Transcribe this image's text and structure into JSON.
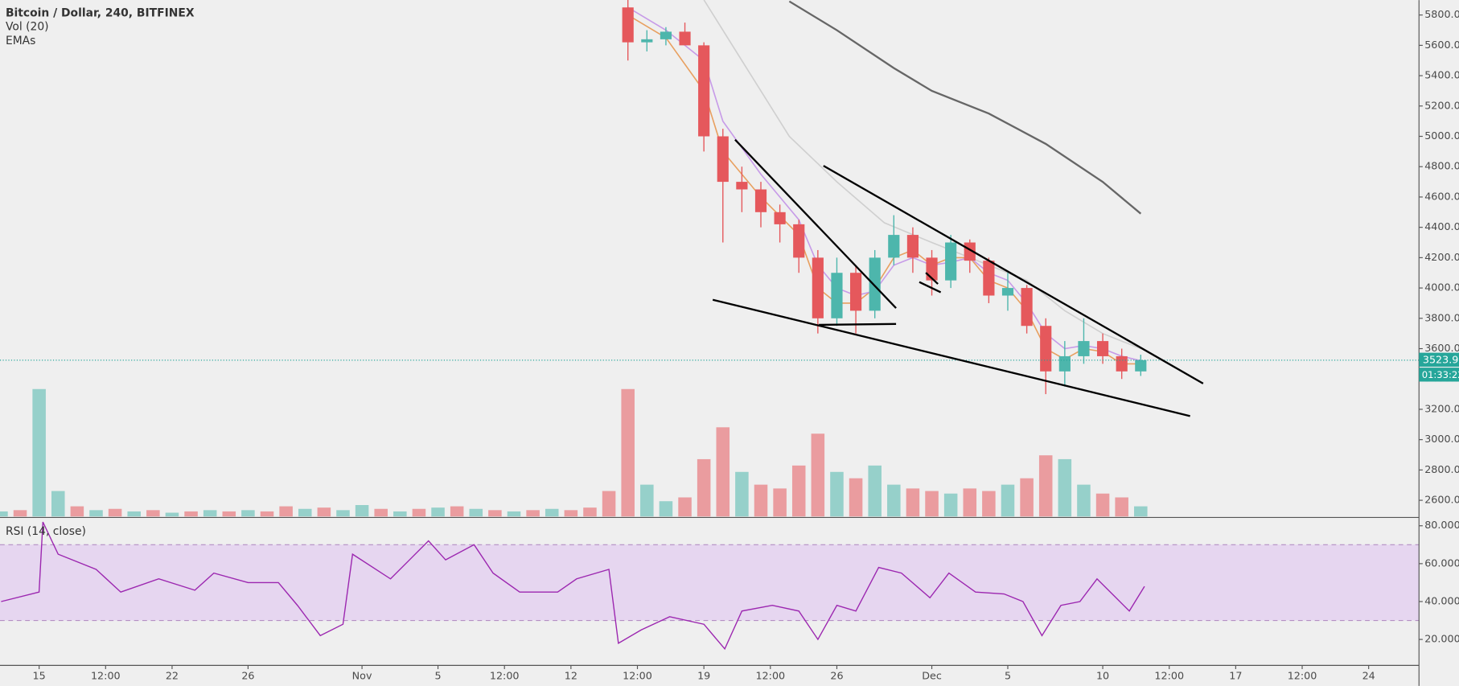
{
  "chart_data": {
    "type": "candlestick",
    "title": "Bitcoin / Dollar, 240, BITFINEX",
    "indicator_labels": [
      "Vol (20)",
      "EMAs"
    ],
    "xlim": [
      12.94,
      87.65
    ],
    "xticks": [
      15,
      {
        "value": 18.5,
        "label": "12:00"
      },
      22,
      26,
      {
        "value": 32,
        "label": "Nov"
      },
      {
        "value": 36,
        "label": "5"
      },
      {
        "value": 39.5,
        "label": "12:00"
      },
      {
        "value": 43,
        "label": "12"
      },
      {
        "value": 46.5,
        "label": "12:00"
      },
      {
        "value": 50,
        "label": "19"
      },
      {
        "value": 53.5,
        "label": "12:00"
      },
      {
        "value": 57,
        "label": "26"
      },
      {
        "value": 62,
        "label": "Dec"
      },
      {
        "value": 66,
        "label": "5"
      },
      {
        "value": 71,
        "label": "10"
      },
      {
        "value": 74.5,
        "label": "12:00"
      },
      {
        "value": 78,
        "label": "17"
      },
      {
        "value": 81.5,
        "label": "12:00"
      },
      {
        "value": 85,
        "label": "24"
      }
    ],
    "ylim": [
      2493,
      5898
    ],
    "yticks": [
      {
        "value": 2600,
        "label": "2600.0"
      },
      {
        "value": 2800,
        "label": "2800.0"
      },
      {
        "value": 3000,
        "label": "3000.0"
      },
      {
        "value": 3200,
        "label": "3200.0"
      },
      {
        "value": 3400,
        "label": "3400.0"
      },
      {
        "value": 3600,
        "label": "3600.0"
      },
      {
        "value": 3800,
        "label": "3800.0"
      },
      {
        "value": 4000,
        "label": "4000.0"
      },
      {
        "value": 4200,
        "label": "4200.0"
      },
      {
        "value": 4400,
        "label": "4400.0"
      },
      {
        "value": 4600,
        "label": "4600.0"
      },
      {
        "value": 4800,
        "label": "4800.0"
      },
      {
        "value": 5000,
        "label": "5000.0"
      },
      {
        "value": 5200,
        "label": "5200.0"
      },
      {
        "value": 5400,
        "label": "5400.0"
      },
      {
        "value": 5600,
        "label": "5600.0"
      },
      {
        "value": 5800,
        "label": "5800.0"
      }
    ],
    "up_color": "#4db6ac",
    "down_color": "#e5585c",
    "candles": {
      "x": [
        46,
        47,
        48,
        49,
        50,
        51,
        52,
        53,
        54,
        55,
        56,
        57,
        58,
        59,
        60,
        61,
        62,
        63,
        64,
        65,
        66,
        67,
        68,
        69,
        70,
        71,
        72,
        73
      ],
      "open": [
        5850,
        5620,
        5640,
        5690,
        5600,
        5000,
        4700,
        4650,
        4500,
        4420,
        4200,
        3800,
        4100,
        3850,
        4200,
        4350,
        4200,
        4050,
        4300,
        4180,
        3950,
        4000,
        3750,
        3450,
        3550,
        3650,
        3550,
        3450
      ],
      "high": [
        5900,
        5700,
        5720,
        5750,
        5620,
        5050,
        4800,
        4700,
        4550,
        4450,
        4250,
        4200,
        4150,
        4250,
        4480,
        4400,
        4250,
        4350,
        4320,
        4200,
        4100,
        4020,
        3800,
        3650,
        3800,
        3700,
        3600,
        3560
      ],
      "low": [
        5500,
        5560,
        5600,
        5620,
        4900,
        4300,
        4500,
        4400,
        4300,
        4100,
        3700,
        3750,
        3700,
        3800,
        4150,
        4100,
        3950,
        4000,
        4100,
        3900,
        3850,
        3700,
        3300,
        3350,
        3500,
        3500,
        3400,
        3420
      ],
      "close": [
        5620,
        5640,
        5690,
        5600,
        5000,
        4700,
        4650,
        4500,
        4420,
        4200,
        3800,
        4100,
        3850,
        4200,
        4350,
        4200,
        4050,
        4300,
        4180,
        3950,
        4000,
        3750,
        3450,
        3550,
        3650,
        3550,
        3450,
        3523.9
      ]
    },
    "last_price": 3523.9,
    "countdown": "01:33:22",
    "emas": [
      {
        "color": "#e8a060",
        "x": [
          46,
          48,
          50,
          51,
          53,
          55,
          56,
          57,
          58,
          59,
          60,
          61,
          62,
          63,
          64,
          65,
          66,
          67,
          68,
          69,
          70,
          71,
          72,
          73
        ],
        "values": [
          5800,
          5650,
          5300,
          4900,
          4600,
          4350,
          4000,
          3900,
          3900,
          4000,
          4200,
          4250,
          4150,
          4200,
          4200,
          4050,
          4000,
          3850,
          3600,
          3530,
          3600,
          3580,
          3500,
          3500
        ]
      },
      {
        "color": "#c79be8",
        "x": [
          46,
          48,
          50,
          51,
          53,
          55,
          56,
          57,
          58,
          59,
          60,
          61,
          62,
          63,
          64,
          65,
          66,
          67,
          68,
          69,
          70,
          71,
          72,
          73
        ],
        "values": [
          5850,
          5700,
          5500,
          5100,
          4750,
          4450,
          4150,
          4000,
          3950,
          3980,
          4150,
          4200,
          4150,
          4170,
          4200,
          4100,
          4050,
          3900,
          3700,
          3600,
          3620,
          3600,
          3550,
          3520
        ]
      },
      {
        "color": "#cfcfcf",
        "x": [
          50,
          52,
          54.5,
          57,
          59.5,
          62,
          65,
          67,
          69,
          71,
          73
        ],
        "values": [
          5900,
          5500,
          5000,
          4700,
          4430,
          4300,
          4150,
          4050,
          3850,
          3700,
          3600
        ]
      },
      {
        "color": "#666666",
        "x": [
          54.5,
          57,
          60,
          62,
          65,
          68,
          71,
          73
        ],
        "values": [
          5890,
          5700,
          5450,
          5300,
          5150,
          4950,
          4700,
          4490
        ]
      }
    ],
    "volume": {
      "ylim": [
        0,
        100
      ],
      "x": [
        13,
        14,
        15,
        16,
        17,
        18,
        19,
        20,
        21,
        22,
        23,
        24,
        25,
        26,
        27,
        28,
        29,
        30,
        31,
        32,
        33,
        34,
        35,
        36,
        37,
        38,
        39,
        40,
        41,
        42,
        43,
        44,
        45,
        46,
        47,
        48,
        49,
        50,
        51,
        52,
        53,
        54,
        55,
        56,
        57,
        58,
        59,
        60,
        61,
        62,
        63,
        64,
        65,
        66,
        67,
        68,
        69,
        70,
        71,
        72,
        73
      ],
      "values": [
        4,
        5,
        100,
        20,
        8,
        5,
        6,
        4,
        5,
        3,
        4,
        5,
        4,
        5,
        4,
        8,
        6,
        7,
        5,
        9,
        6,
        4,
        6,
        7,
        8,
        6,
        5,
        4,
        5,
        6,
        5,
        7,
        20,
        100,
        25,
        12,
        15,
        45,
        70,
        35,
        25,
        22,
        40,
        65,
        35,
        30,
        40,
        25,
        22,
        20,
        18,
        22,
        20,
        25,
        30,
        48,
        45,
        25,
        18,
        15,
        8
      ],
      "up": [
        true,
        false,
        true,
        true,
        false,
        true,
        false,
        true,
        false,
        true,
        false,
        true,
        false,
        true,
        false,
        false,
        true,
        false,
        true,
        true,
        false,
        true,
        false,
        true,
        false,
        true,
        false,
        true,
        false,
        true,
        false,
        false,
        false,
        false,
        true,
        true,
        false,
        false,
        false,
        true,
        false,
        false,
        false,
        false,
        true,
        false,
        true,
        true,
        false,
        false,
        true,
        false,
        false,
        true,
        false,
        false,
        true,
        true,
        false,
        false,
        true
      ]
    },
    "rsi": {
      "label": "RSI (14, close)",
      "color": "#9c27b0",
      "ylim": [
        6.3,
        83.9
      ],
      "yticks": [
        {
          "value": 20,
          "label": "20.0000"
        },
        {
          "value": 40,
          "label": "40.0000"
        },
        {
          "value": 60,
          "label": "60.0000"
        },
        {
          "value": 80,
          "label": "80.0000"
        }
      ],
      "bands": [
        30,
        70
      ],
      "x": [
        13,
        15,
        15.2,
        16,
        18,
        19.3,
        21.3,
        23.2,
        24.2,
        26,
        27.6,
        28.6,
        29.8,
        31,
        31.5,
        33.5,
        35.5,
        36.4,
        37.9,
        38.9,
        40.3,
        42.3,
        43.3,
        45,
        45.5,
        46.7,
        48.2,
        50,
        51.1,
        52,
        53.6,
        55,
        56,
        57,
        58,
        59.2,
        60.4,
        61.9,
        62.9,
        64.3,
        65.8,
        66.8,
        67.8,
        68.8,
        69.8,
        70.7,
        71.7,
        72.4,
        73.2
      ],
      "values": [
        40,
        45,
        82,
        65,
        57,
        45,
        52,
        46,
        55,
        50,
        50,
        38,
        22,
        28,
        65,
        52,
        72,
        62,
        70,
        55,
        45,
        45,
        52,
        57,
        18,
        25,
        32,
        28,
        15,
        35,
        38,
        35,
        20,
        38,
        35,
        58,
        55,
        42,
        55,
        45,
        44,
        40,
        22,
        38,
        40,
        52,
        42,
        35,
        48
      ]
    }
  }
}
